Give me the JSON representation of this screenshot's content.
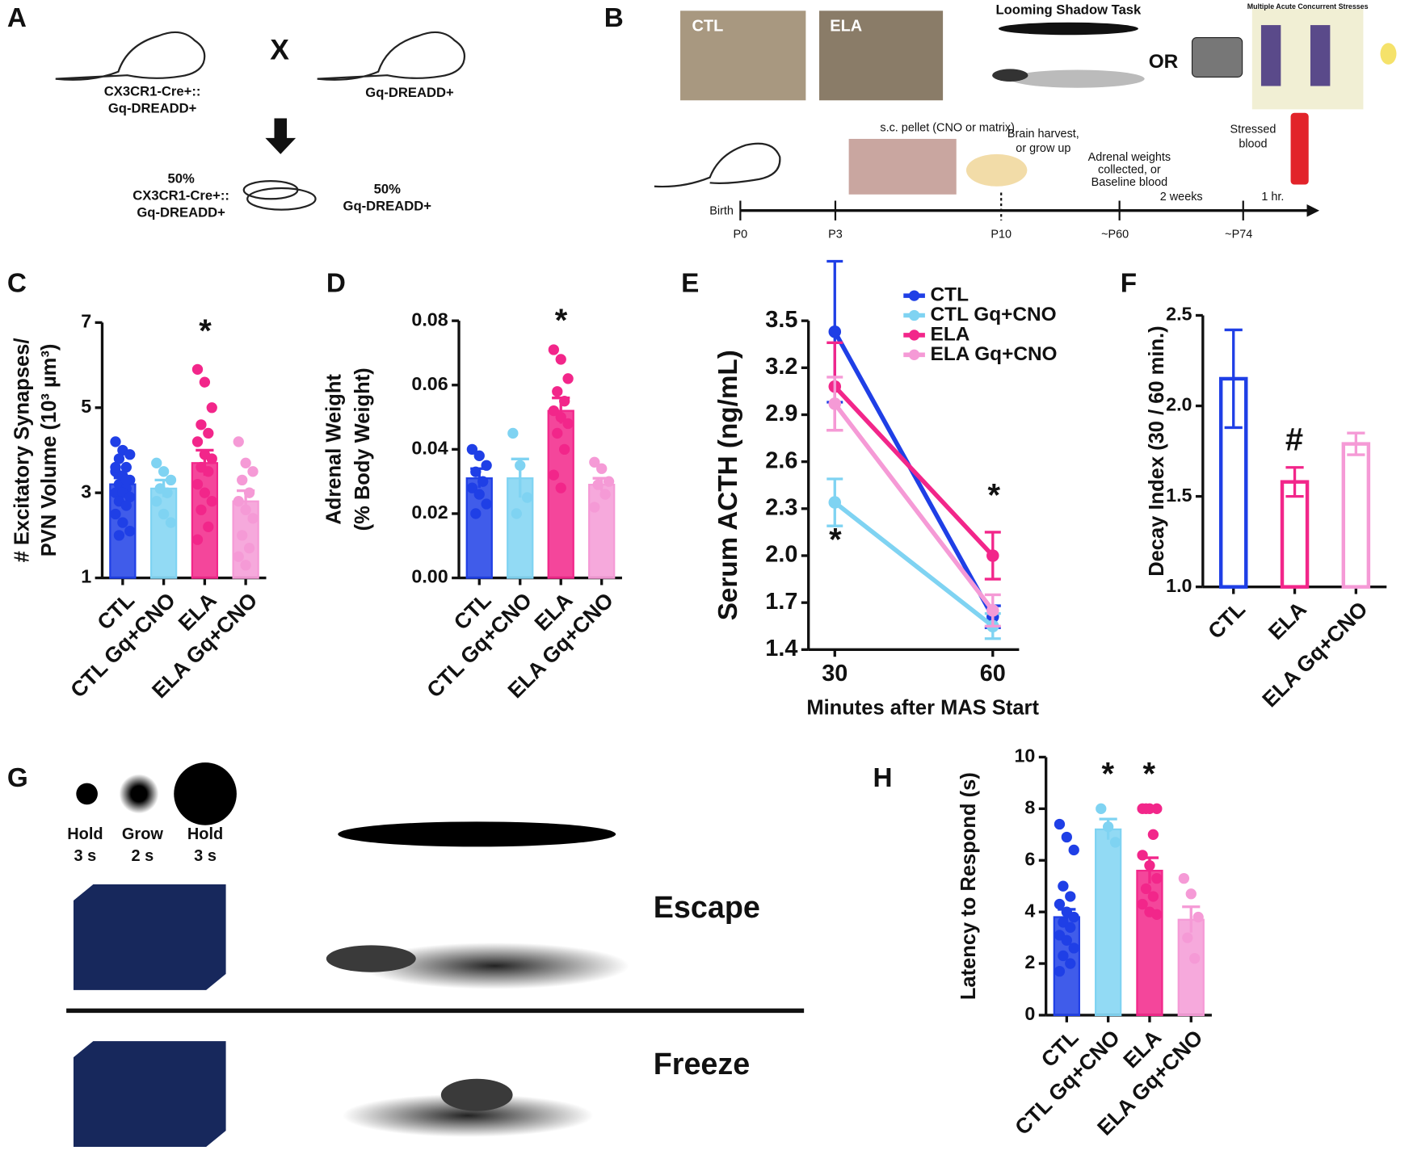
{
  "labels": [
    "A",
    "B",
    "C",
    "D",
    "E",
    "F",
    "G",
    "H"
  ],
  "diagram_a": {
    "parent_left": [
      "CX3CR1-Cre+::",
      "Gq-DREADD+"
    ],
    "cross": "X",
    "parent_right": "Gq-DREADD+",
    "offspring_left": [
      "50%",
      "CX3CR1-Cre+::",
      "Gq-DREADD+"
    ],
    "offspring_right": [
      "50%",
      "Gq-DREADD+"
    ]
  },
  "diagram_b": {
    "cage_labels": [
      "CTL",
      "ELA"
    ],
    "looming": "Looming Shadow Task",
    "or": "OR",
    "stresses": "Multiple Acute Concurrent Stresses",
    "pellet": "s.c. pellet (CNO or matrix)",
    "brain": [
      "Brain harvest,",
      "or grow up"
    ],
    "adrenal": [
      "Adrenal weights",
      "collected, or",
      "Baseline blood"
    ],
    "stressed": [
      "Stressed",
      "blood"
    ],
    "intervals": [
      "2 weeks",
      "1 hr."
    ],
    "birth": "Birth",
    "timepoints": [
      "P0",
      "P3",
      "P10",
      "~P60",
      "~P74"
    ]
  },
  "diagram_g": {
    "phases": [
      [
        "Hold",
        "3 s"
      ],
      [
        "Grow",
        "2 s"
      ],
      [
        "Hold",
        "3 s"
      ]
    ],
    "outcomes": [
      "Escape",
      "Freeze"
    ]
  },
  "chart_data": [
    {
      "type": "bar",
      "ylabel": [
        "# Excitatory Synapses/",
        "PVN Volume (10³ µm³)"
      ],
      "categories": [
        "CTL",
        "CTL Gq+CNO",
        "ELA",
        "ELA Gq+CNO"
      ],
      "values": [
        3.2,
        3.1,
        3.7,
        2.8
      ],
      "errors": [
        0.15,
        0.2,
        0.3,
        0.25
      ],
      "colors": [
        "#1f3fe6",
        "#7fd3f2",
        "#f2268a",
        "#f59ad6"
      ],
      "points": [
        [
          4.2,
          4.0,
          3.9,
          3.8,
          3.6,
          3.5,
          3.4,
          3.3,
          3.2,
          3.1,
          3.0,
          3.0,
          2.9,
          2.8,
          2.7,
          2.5,
          2.3,
          2.1,
          2.0,
          3.3,
          3.6
        ],
        [
          3.7,
          3.5,
          3.3,
          3.1,
          3.0,
          2.8,
          2.5,
          2.3
        ],
        [
          5.9,
          5.6,
          5.0,
          4.6,
          4.4,
          4.2,
          3.9,
          3.8,
          3.6,
          3.5,
          3.2,
          3.0,
          2.8,
          2.6,
          2.2,
          1.9
        ],
        [
          4.2,
          3.7,
          3.5,
          3.3,
          3.0,
          2.8,
          2.6,
          2.4,
          2.0,
          1.7,
          1.5,
          1.3
        ]
      ],
      "ylim": [
        1,
        7
      ],
      "yticks": [
        1,
        3,
        5,
        7
      ],
      "annotations": [
        "*"
      ]
    },
    {
      "type": "bar",
      "ylabel": [
        "Adrenal Weight",
        "(% Body Weight)"
      ],
      "categories": [
        "CTL",
        "CTL Gq+CNO",
        "ELA",
        "ELA Gq+CNO"
      ],
      "values": [
        0.031,
        0.031,
        0.052,
        0.029
      ],
      "errors": [
        0.003,
        0.006,
        0.004,
        0.002
      ],
      "colors": [
        "#1f3fe6",
        "#7fd3f2",
        "#f2268a",
        "#f59ad6"
      ],
      "points": [
        [
          0.04,
          0.038,
          0.035,
          0.033,
          0.03,
          0.028,
          0.026,
          0.023,
          0.02
        ],
        [
          0.045,
          0.035,
          0.025,
          0.02
        ],
        [
          0.071,
          0.068,
          0.062,
          0.058,
          0.055,
          0.052,
          0.05,
          0.048,
          0.045,
          0.04,
          0.032,
          0.028
        ],
        [
          0.036,
          0.034,
          0.03,
          0.029,
          0.026,
          0.022
        ]
      ],
      "ylim": [
        0,
        0.08
      ],
      "yticks": [
        {
          "value": 0,
          "label": "0.00"
        },
        {
          "value": 0.02,
          "label": "0.02"
        },
        {
          "value": 0.04,
          "label": "0.04"
        },
        {
          "value": 0.06,
          "label": "0.06"
        },
        {
          "value": 0.08,
          "label": "0.08"
        }
      ],
      "annotations": [
        "*"
      ]
    },
    {
      "type": "line",
      "ylabel": [
        "Serum ACTH (ng/mL)"
      ],
      "xlabel": "Minutes after MAS Start",
      "x": [
        30,
        60
      ],
      "xlim": [
        25,
        65
      ],
      "xticks": [
        30,
        60
      ],
      "series": [
        {
          "name": "CTL",
          "color": "#1f3fe6",
          "values": [
            3.43,
            1.61
          ],
          "errors": [
            0.45,
            0.07
          ]
        },
        {
          "name": "CTL Gq+CNO",
          "color": "#7fd3f2",
          "values": [
            2.34,
            1.55
          ],
          "errors": [
            0.15,
            0.08
          ]
        },
        {
          "name": "ELA",
          "color": "#f2268a",
          "values": [
            3.08,
            2.0
          ],
          "errors": [
            0.28,
            0.15
          ]
        },
        {
          "name": "ELA Gq+CNO",
          "color": "#f59ad6",
          "values": [
            2.97,
            1.65
          ],
          "errors": [
            0.17,
            0.1
          ]
        }
      ],
      "ylim": [
        1.4,
        3.5
      ],
      "yticks": [
        1.4,
        1.7,
        {
          "value": 2,
          "label": "2.0"
        },
        2.3,
        2.6,
        2.9,
        3.2,
        3.5
      ],
      "legend": "upper right",
      "annotations": [
        "*",
        "*"
      ]
    },
    {
      "type": "bar",
      "hollow": true,
      "ylabel": [
        "Decay Index (30 / 60 min.)"
      ],
      "categories": [
        "CTL",
        "ELA",
        "ELA Gq+CNO"
      ],
      "values": [
        2.15,
        1.58,
        1.79
      ],
      "errors": [
        0.27,
        0.08,
        0.06
      ],
      "colors": [
        "#1f3fe6",
        "#f2268a",
        "#f59ad6"
      ],
      "ylim": [
        1,
        2.5
      ],
      "yticks": [
        {
          "value": 1,
          "label": "1.0"
        },
        1.5,
        {
          "value": 2,
          "label": "2.0"
        },
        2.5
      ],
      "annotations": [
        "#"
      ]
    },
    {
      "type": "bar",
      "ylabel": [
        "Latency to Respond (s)"
      ],
      "categories": [
        "CTL",
        "CTL Gq+CNO",
        "ELA",
        "ELA Gq+CNO"
      ],
      "values": [
        3.8,
        7.2,
        5.6,
        3.7
      ],
      "errors": [
        0.3,
        0.4,
        0.5,
        0.5
      ],
      "colors": [
        "#1f3fe6",
        "#7fd3f2",
        "#f2268a",
        "#f59ad6"
      ],
      "points": [
        [
          7.4,
          6.9,
          6.4,
          5.0,
          4.6,
          4.3,
          4.0,
          3.8,
          3.6,
          3.4,
          3.1,
          2.9,
          2.6,
          2.3,
          2.0,
          1.7
        ],
        [
          8.0,
          7.3,
          6.7
        ],
        [
          8.0,
          8.0,
          8.0,
          8.0,
          7.0,
          6.2,
          5.8,
          5.3,
          4.9,
          4.6,
          4.3,
          4.0,
          3.9
        ],
        [
          5.3,
          4.7,
          3.8,
          3.0,
          2.2
        ]
      ],
      "ylim": [
        0,
        10
      ],
      "yticks": [
        0,
        2,
        4,
        6,
        8,
        10
      ],
      "annotations": [
        "*",
        "*"
      ]
    }
  ]
}
